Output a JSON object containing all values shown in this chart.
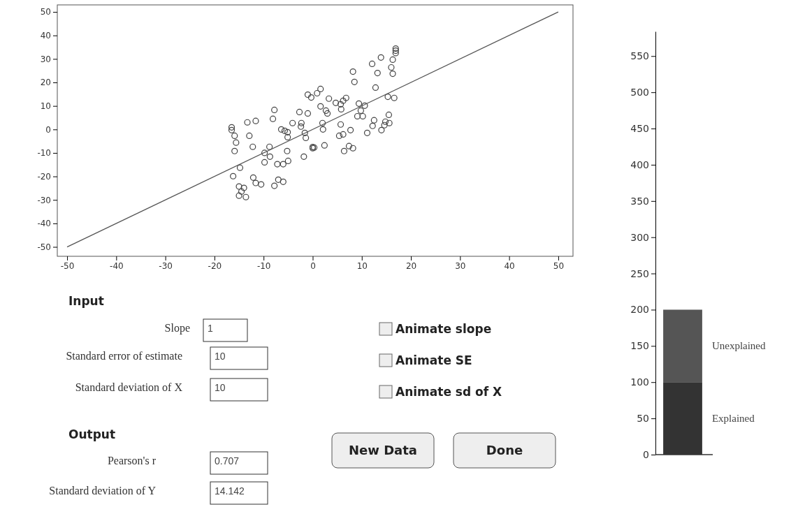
{
  "chart_data": [
    {
      "type": "scatter",
      "xlim": [
        -52,
        53
      ],
      "ylim": [
        -54,
        53
      ],
      "xticks": [
        -50,
        -40,
        -30,
        -20,
        -10,
        0,
        10,
        20,
        30,
        40,
        50
      ],
      "yticks": [
        -50,
        -40,
        -30,
        -20,
        -10,
        0,
        10,
        20,
        30,
        40,
        50
      ],
      "grid": false,
      "series": [
        {
          "type": "scatter",
          "marker": "circle",
          "color": "#444444",
          "x": [
            16.9,
            16.9,
            16.9,
            13.9,
            12.1,
            16.3,
            13.2,
            16,
            16.3,
            8.2,
            8.5,
            12.8,
            15.3,
            16.6,
            -1,
            -0.3,
            0.9,
            1.6,
            3.3,
            4.7,
            5.7,
            6.8,
            6.2,
            5.8,
            1.6,
            2.7,
            3,
            9.4,
            10.6,
            9.8,
            9.1,
            10.2,
            12.5,
            12.2,
            11.1,
            15.5,
            14.8,
            15.6,
            14.6,
            14,
            -7.8,
            -8.1,
            -2.7,
            -1,
            -13.3,
            -11.6,
            -16.5,
            -16.5,
            -15.9,
            -15.6,
            -12.9,
            -4.1,
            -2.3,
            -2.4,
            -6.4,
            -5.7,
            -5.1,
            -5.1,
            -1.6,
            -1.4,
            2,
            2.1,
            5.7,
            7.7,
            6.2,
            5.4,
            -15.9,
            -12.2,
            -8.8,
            -9.8,
            -8.7,
            -9.8,
            -5.2,
            -7.2,
            -6,
            -5,
            -1.8,
            0.3,
            0,
            0,
            2.4,
            6.4,
            7.4,
            8.2,
            -14.8,
            -16.2,
            -12.1,
            -11.6,
            -10.5,
            -7.8,
            -7,
            -6,
            -15,
            -14,
            -14.5,
            -15,
            -13.6
          ],
          "values": [
            34.4,
            33.5,
            32.5,
            30.6,
            27.9,
            29.7,
            24,
            26.4,
            23.7,
            24.6,
            20.2,
            17.8,
            13.9,
            13.4,
            14.8,
            13.6,
            15.4,
            17.2,
            13.1,
            11.3,
            10.7,
            13.4,
            12.2,
            8.6,
            9.8,
            8,
            6.8,
            11,
            10.1,
            8,
            5.6,
            5.6,
            3.9,
            1.5,
            -1.5,
            6.2,
            3.3,
            2.7,
            1.8,
            -0.3,
            8.3,
            4.5,
            7.4,
            6.8,
            3,
            3.6,
            0.9,
            -0.3,
            -2.7,
            -5.6,
            -2.7,
            2.7,
            2.7,
            1.2,
            0,
            -0.6,
            -1.2,
            -3.3,
            -1.5,
            -3.6,
            2.7,
            0,
            2.1,
            -0.3,
            -2.1,
            -2.7,
            -9.2,
            -7.4,
            -7.4,
            -10,
            -11.6,
            -14,
            -9.2,
            -14.8,
            -14.8,
            -13.4,
            -11.6,
            -7.7,
            -8,
            -7.5,
            -6.8,
            -9.2,
            -7.1,
            -8,
            -16.3,
            -19.9,
            -20.5,
            -22.8,
            -23.4,
            -24,
            -21.4,
            -22.3,
            -24.3,
            -24.9,
            -26.4,
            -28.2,
            -28.8
          ]
        },
        {
          "type": "line",
          "color": "#555555",
          "x": [
            -50,
            50
          ],
          "values": [
            -50,
            50
          ],
          "line_style": "solid",
          "marker": "none"
        }
      ]
    },
    {
      "type": "bar",
      "categories": [
        null
      ],
      "stacked": true,
      "ylim": [
        0,
        584
      ],
      "yticks": [
        0,
        50,
        100,
        150,
        200,
        250,
        300,
        350,
        400,
        450,
        500,
        550
      ],
      "legend": false,
      "series": [
        {
          "name": "Explained",
          "color": "#333333",
          "values": [
            100
          ]
        },
        {
          "name": "Unexplained",
          "color": "#555555",
          "values": [
            100
          ]
        }
      ]
    },
    {
      "type": "other",
      "annotations": [
        "Input",
        "Slope",
        "1",
        "Standard error of estimate",
        "10",
        "Standard deviation of X",
        "10",
        "Output",
        "Pearson's r",
        "0.707",
        "Standard deviation of Y",
        "14.142",
        "Animate slope",
        "Animate SE",
        "Animate sd of X",
        "New Data",
        "Done"
      ]
    }
  ]
}
